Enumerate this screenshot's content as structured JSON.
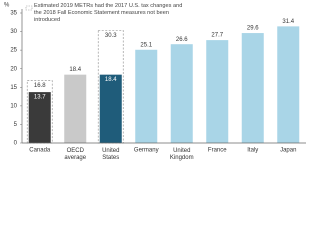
{
  "chart_data": {
    "type": "bar",
    "y_label": "%",
    "categories": [
      "Canada",
      "OECD average",
      "United States",
      "Germany",
      "United Kingdom",
      "France",
      "Italy",
      "Japan"
    ],
    "series": [
      {
        "name": "Estimated 2019 METRs had the 2017 U.S. tax changes and the 2018 Fall Economic Statement measures not been introduced",
        "style": "dashed",
        "color": "#999999",
        "values": [
          16.8,
          null,
          30.3,
          null,
          null,
          null,
          null,
          null
        ]
      },
      {
        "name": null,
        "style": "solid",
        "colors": [
          "#3a3a3a",
          "#c9c9c9",
          "#1f5c7a",
          "#a9d5e7",
          "#a9d5e7",
          "#a9d5e7",
          "#a9d5e7",
          "#a9d5e7"
        ],
        "values": [
          13.7,
          18.4,
          18.4,
          25.1,
          26.6,
          27.7,
          29.6,
          31.4
        ]
      }
    ],
    "ylim": [
      0,
      35
    ],
    "yticks": [
      0,
      5,
      10,
      15,
      20,
      25,
      30,
      35
    ],
    "grid": false
  }
}
